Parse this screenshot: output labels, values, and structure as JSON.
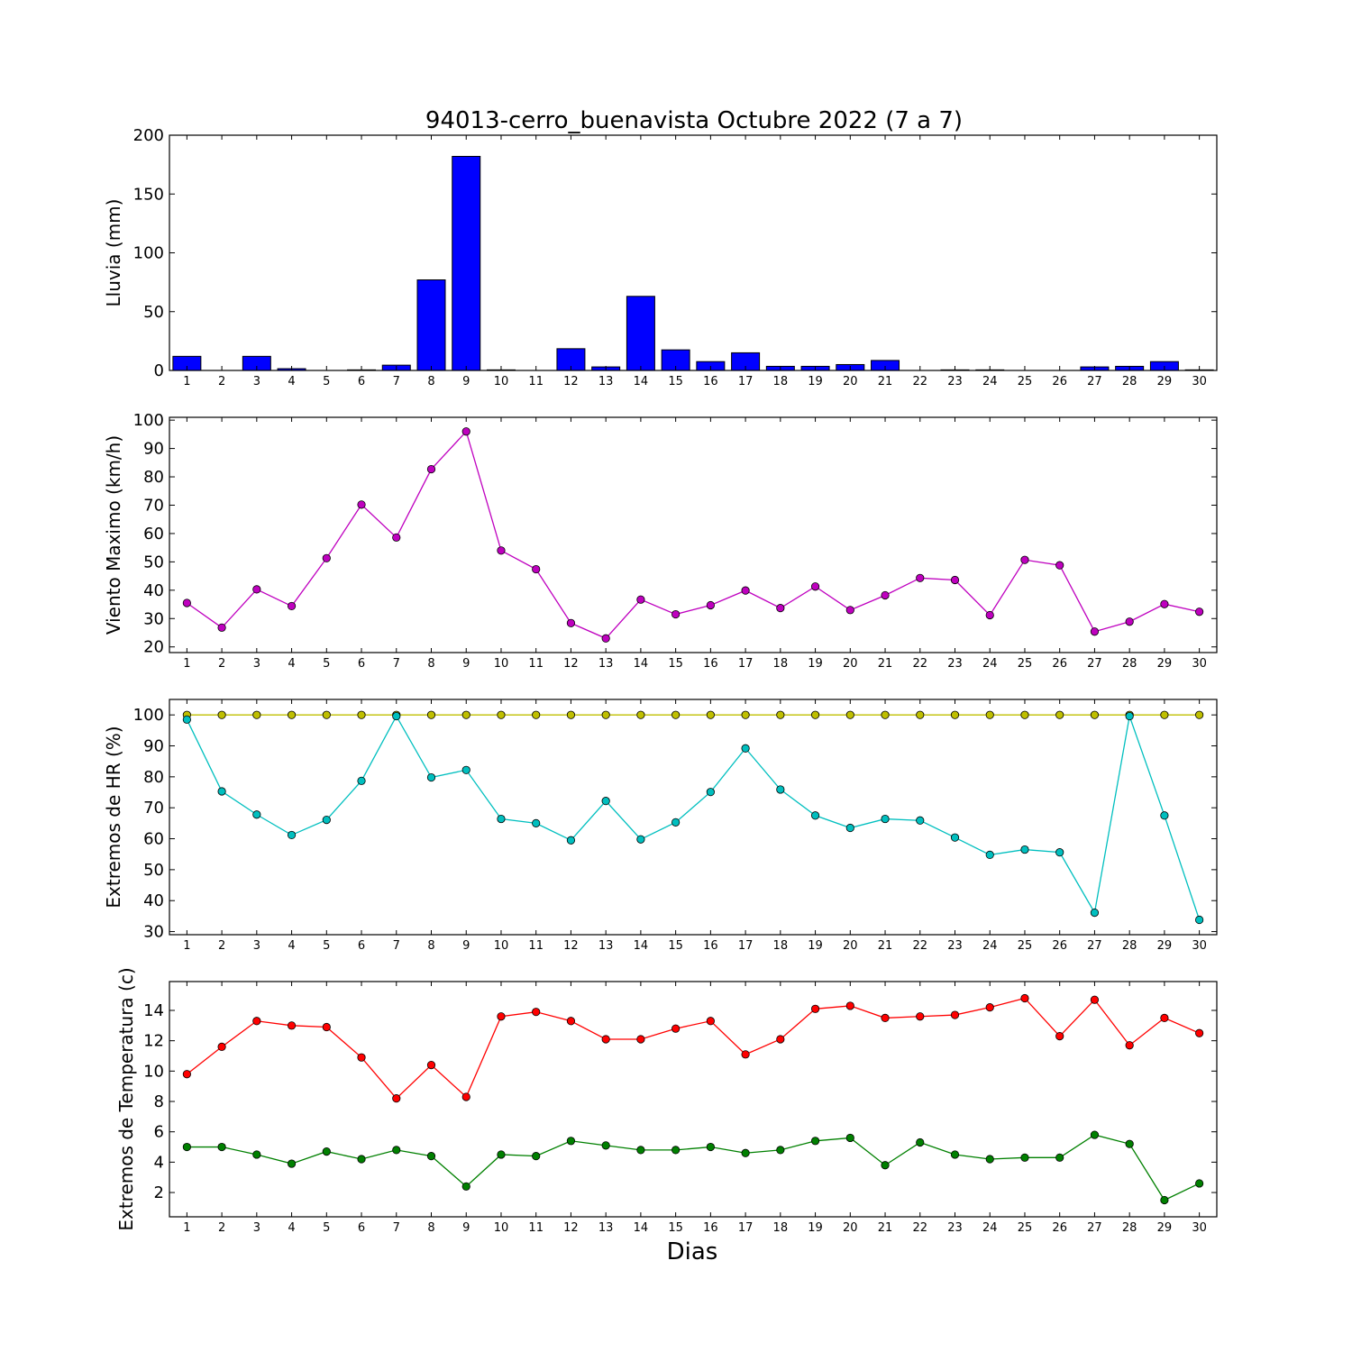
{
  "title": "94013-cerro_buenavista Octubre 2022  (7 a 7)",
  "xlabel": "Dias",
  "colors": {
    "rain": "#0000ff",
    "wind": "#bf00bf",
    "hr_max": "#bfbf00",
    "hr_min": "#00bfbf",
    "temp_max": "#ff0000",
    "temp_min": "#008000"
  },
  "chart_data": [
    {
      "type": "bar",
      "id": "rain",
      "ylabel": "Lluvia (mm)",
      "categories": [
        "1",
        "2",
        "3",
        "4",
        "5",
        "6",
        "7",
        "8",
        "9",
        "10",
        "11",
        "12",
        "13",
        "14",
        "15",
        "16",
        "17",
        "18",
        "19",
        "20",
        "21",
        "22",
        "23",
        "24",
        "25",
        "26",
        "27",
        "28",
        "29",
        "30"
      ],
      "ylim": [
        0,
        200
      ],
      "yticks": [
        0,
        50,
        100,
        150,
        200
      ],
      "series": [
        {
          "values": [
            12.0,
            0.0,
            12.0,
            1.5,
            0.0,
            0.5,
            4.5,
            77.0,
            182.0,
            0.5,
            0.0,
            18.5,
            3.0,
            63.0,
            17.5,
            7.5,
            15.0,
            3.5,
            3.5,
            5.0,
            8.5,
            0.0,
            0.5,
            0.5,
            0.0,
            0.0,
            3.0,
            3.5,
            7.5,
            0.5
          ]
        }
      ]
    },
    {
      "type": "line",
      "id": "wind",
      "ylabel": "Viento Maximo (km/h)",
      "categories": [
        "1",
        "2",
        "3",
        "4",
        "5",
        "6",
        "7",
        "8",
        "9",
        "10",
        "11",
        "12",
        "13",
        "14",
        "15",
        "16",
        "17",
        "18",
        "19",
        "20",
        "21",
        "22",
        "23",
        "24",
        "25",
        "26",
        "27",
        "28",
        "29",
        "30"
      ],
      "ylim": [
        18,
        101
      ],
      "yticks": [
        20,
        30,
        40,
        50,
        60,
        70,
        80,
        90,
        100
      ],
      "series": [
        {
          "values": [
            35.5,
            26.8,
            40.3,
            34.4,
            51.3,
            70.2,
            58.6,
            82.7,
            96.0,
            54.0,
            47.4,
            28.4,
            23.0,
            36.7,
            31.5,
            34.7,
            39.9,
            33.7,
            41.3,
            33.0,
            38.2,
            44.3,
            43.6,
            31.2,
            50.7,
            48.8,
            25.4,
            28.9,
            35.1,
            32.4
          ]
        }
      ]
    },
    {
      "type": "line",
      "id": "hr",
      "ylabel": "Extremos de HR (%)",
      "categories": [
        "1",
        "2",
        "3",
        "4",
        "5",
        "6",
        "7",
        "8",
        "9",
        "10",
        "11",
        "12",
        "13",
        "14",
        "15",
        "16",
        "17",
        "18",
        "19",
        "20",
        "21",
        "22",
        "23",
        "24",
        "25",
        "26",
        "27",
        "28",
        "29",
        "30"
      ],
      "ylim": [
        29,
        105
      ],
      "yticks": [
        30,
        40,
        50,
        60,
        70,
        80,
        90,
        100
      ],
      "series": [
        {
          "values": [
            100,
            100,
            100,
            100,
            100,
            100,
            100,
            100,
            100,
            100,
            100,
            100,
            100,
            100,
            100,
            100,
            100,
            100,
            100,
            100,
            100,
            100,
            100,
            100,
            100,
            100,
            100,
            100,
            100,
            100
          ]
        },
        {
          "values": [
            98.5,
            75.3,
            67.8,
            61.2,
            66.1,
            78.7,
            99.6,
            79.8,
            82.2,
            66.4,
            65.0,
            59.5,
            72.2,
            59.8,
            65.3,
            75.1,
            89.2,
            75.9,
            67.5,
            63.5,
            66.4,
            65.9,
            60.4,
            54.8,
            56.5,
            55.6,
            36.1,
            99.6,
            67.5,
            33.8
          ]
        }
      ]
    },
    {
      "type": "line",
      "id": "temp",
      "ylabel": "Extremos de Temperatura (c)",
      "categories": [
        "1",
        "2",
        "3",
        "4",
        "5",
        "6",
        "7",
        "8",
        "9",
        "10",
        "11",
        "12",
        "13",
        "14",
        "15",
        "16",
        "17",
        "18",
        "19",
        "20",
        "21",
        "22",
        "23",
        "24",
        "25",
        "26",
        "27",
        "28",
        "29",
        "30"
      ],
      "ylim": [
        0.4,
        15.9
      ],
      "yticks": [
        2,
        4,
        6,
        8,
        10,
        12,
        14
      ],
      "series": [
        {
          "values": [
            9.8,
            11.6,
            13.3,
            13.0,
            12.9,
            10.9,
            8.2,
            10.4,
            8.3,
            13.6,
            13.9,
            13.3,
            12.1,
            12.1,
            12.8,
            13.3,
            11.1,
            12.1,
            14.1,
            14.3,
            13.5,
            13.6,
            13.7,
            14.2,
            14.8,
            12.3,
            14.7,
            11.7,
            13.5,
            12.5
          ]
        },
        {
          "values": [
            5.0,
            5.0,
            4.5,
            3.9,
            4.7,
            4.2,
            4.8,
            4.4,
            2.4,
            4.5,
            4.4,
            5.4,
            5.1,
            4.8,
            4.8,
            5.0,
            4.6,
            4.8,
            5.4,
            5.6,
            3.8,
            5.3,
            4.5,
            4.2,
            4.3,
            4.3,
            5.8,
            5.2,
            1.5,
            2.6
          ]
        }
      ]
    }
  ]
}
